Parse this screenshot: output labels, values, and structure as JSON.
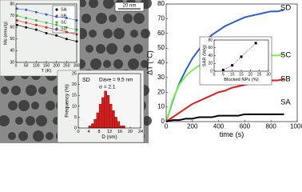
{
  "image": {
    "scale_bar": "20 nm"
  },
  "chart_data": [
    {
      "type": "line",
      "ylabel": "Ms (emu/g)",
      "xlabel": "T (K)",
      "x": [
        5,
        50,
        100,
        150,
        200,
        250,
        300
      ],
      "series": [
        {
          "name": "SA",
          "color": "#000000",
          "values": [
            62,
            60,
            58,
            55,
            53,
            50,
            48
          ]
        },
        {
          "name": "SB",
          "color": "#e0201b",
          "values": [
            66,
            64,
            62,
            60,
            58,
            56,
            54
          ]
        },
        {
          "name": "SC",
          "color": "#3cb83c",
          "values": [
            70,
            68,
            66,
            64,
            62,
            60,
            58
          ]
        },
        {
          "name": "SD",
          "color": "#2a5fd8",
          "values": [
            76,
            75,
            73,
            71,
            69,
            68,
            66
          ]
        }
      ],
      "xlim": [
        0,
        300
      ],
      "xticks": [
        0,
        50,
        100,
        150,
        200,
        250,
        300
      ],
      "ylim": [
        30,
        80
      ],
      "yticks": [
        30,
        40,
        50,
        60,
        70,
        80
      ]
    },
    {
      "type": "histogram",
      "title": "SD",
      "annotations": [
        "Dave = 9.5 nm",
        "σ = 2.1"
      ],
      "ylabel": "Frequency (%)",
      "xlabel": "D (nm)",
      "bins": [
        4,
        5,
        6,
        7,
        8,
        9,
        10,
        11,
        12,
        13,
        14,
        15,
        16,
        17,
        18
      ],
      "values": [
        1,
        2,
        4,
        7,
        11,
        14,
        17,
        15,
        11,
        8,
        5,
        3,
        1,
        1
      ],
      "color": "#d42020",
      "xlim": [
        0,
        24
      ],
      "xticks": [
        0,
        4,
        8,
        12,
        16,
        20,
        24
      ],
      "ylim": [
        0,
        25
      ],
      "yticks": [
        0,
        5,
        10,
        15,
        20,
        25
      ]
    },
    {
      "type": "line",
      "ylabel": "ΔT (°C)",
      "xlabel": "time (s)",
      "x": [
        0,
        50,
        100,
        150,
        200,
        250,
        300,
        350,
        400,
        450,
        500,
        550,
        600,
        650,
        700,
        750,
        800,
        850,
        900
      ],
      "series": [
        {
          "name": "SD",
          "color": "#2a5fd8",
          "values": [
            0,
            14,
            26,
            35,
            43,
            49,
            55,
            59,
            62,
            65,
            67,
            69,
            71,
            72,
            73,
            74,
            75,
            75,
            76
          ]
        },
        {
          "name": "SC",
          "color": "#7cf04a",
          "values": [
            0,
            15,
            25,
            31,
            35,
            38,
            40,
            41,
            42,
            43,
            43,
            44,
            44,
            44,
            45,
            45,
            45,
            45,
            46
          ]
        },
        {
          "name": "SB",
          "color": "#e0201b",
          "values": [
            0,
            3,
            6,
            9,
            12,
            14,
            16,
            18,
            20,
            21,
            23,
            24,
            25,
            26,
            27,
            27,
            28,
            28,
            29
          ]
        },
        {
          "name": "SA",
          "color": "#000000",
          "values": [
            0,
            1,
            1,
            2,
            2,
            3,
            3,
            3,
            4,
            4,
            4,
            4,
            5,
            5,
            5,
            5,
            5,
            5,
            5
          ]
        }
      ],
      "xlim": [
        0,
        1000
      ],
      "xticks": [
        0,
        200,
        400,
        600,
        800,
        1000
      ],
      "ylim": [
        0,
        80
      ],
      "yticks": [
        0,
        10,
        20,
        30,
        40,
        50,
        60,
        70,
        80
      ]
    },
    {
      "type": "scatter",
      "ylabel": "SAR (W/g)",
      "xlabel": "Blocked NPs (%)",
      "x": [
        5,
        10,
        15,
        23
      ],
      "values": [
        3,
        15,
        37,
        72
      ],
      "color": "#000000",
      "xlim": [
        0,
        30
      ],
      "xticks": [
        0,
        5,
        10,
        15,
        20,
        25,
        30
      ],
      "ylim": [
        0,
        80
      ],
      "yticks": [
        0,
        20,
        40,
        60,
        80
      ]
    }
  ]
}
